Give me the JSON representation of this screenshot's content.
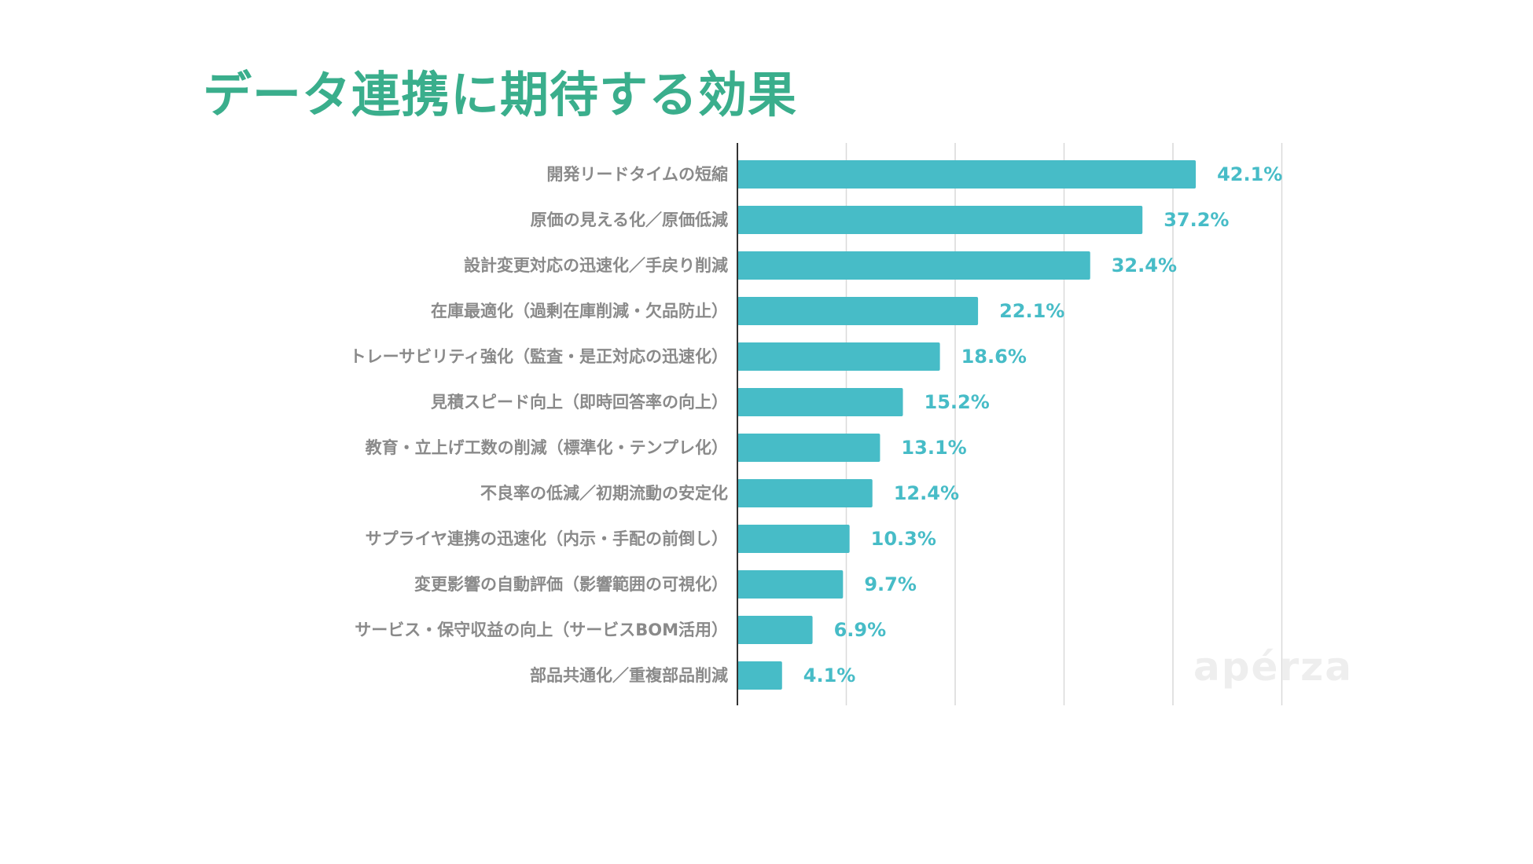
{
  "page": {
    "title": "データ連携に期待する効果",
    "watermark": "apérza"
  },
  "colors": {
    "title": "#3aae8c",
    "bar": "#47bcc7",
    "value_label": "#47bcc7",
    "category_label": "#8a8a8a",
    "gridline": "#d9d9d9",
    "axis": "#333333"
  },
  "chart_data": {
    "type": "bar",
    "orientation": "horizontal",
    "title": "データ連携に期待する効果",
    "xlabel": "",
    "ylabel": "",
    "xlim": [
      0,
      50
    ],
    "grid": true,
    "categories": [
      "開発リードタイムの短縮",
      "原価の見える化／原価低減",
      "設計変更対応の迅速化／手戻り削減",
      "在庫最適化（過剰在庫削減・欠品防止）",
      "トレーサビリティ強化（監査・是正対応の迅速化）",
      "見積スピード向上（即時回答率の向上）",
      "教育・立上げ工数の削減（標準化・テンプレ化）",
      "不良率の低減／初期流動の安定化",
      "サプライヤ連携の迅速化（内示・手配の前倒し）",
      "変更影響の自動評価（影響範囲の可視化）",
      "サービス・保守収益の向上（サービスBOM活用）",
      "部品共通化／重複部品削減"
    ],
    "values": [
      42.1,
      37.2,
      32.4,
      22.1,
      18.6,
      15.2,
      13.1,
      12.4,
      10.3,
      9.7,
      6.9,
      4.1
    ],
    "value_labels": [
      "42.1%",
      "37.2%",
      "32.4%",
      "22.1%",
      "18.6%",
      "15.2%",
      "13.1%",
      "12.4%",
      "10.3%",
      "9.7%",
      "6.9%",
      "4.1%"
    ]
  }
}
